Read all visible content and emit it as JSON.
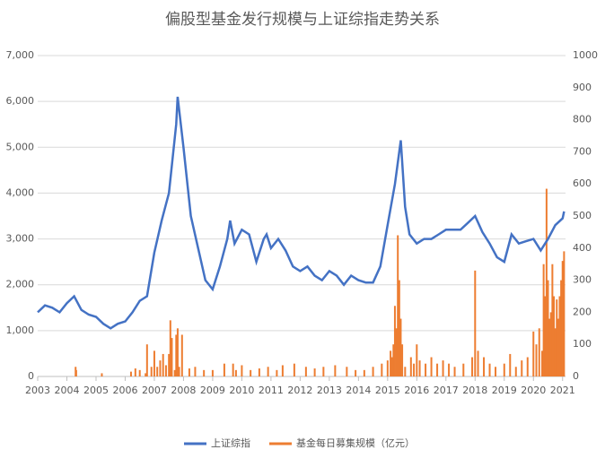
{
  "chart_data": {
    "type": "combo",
    "title": "偏股型基金发行规模与上证综指走势关系",
    "xlim": [
      2003,
      2021.1
    ],
    "xticks": [
      2003,
      2004,
      2005,
      2006,
      2007,
      2008,
      2009,
      2010,
      2011,
      2012,
      2013,
      2014,
      2015,
      2016,
      2017,
      2018,
      2019,
      2020,
      2021
    ],
    "ylim": [
      0,
      7000
    ],
    "yticks": [
      0,
      {
        "value": 1000,
        "label": "1,000"
      },
      {
        "value": 2000,
        "label": "2,000"
      },
      {
        "value": 3000,
        "label": "3,000"
      },
      {
        "value": 4000,
        "label": "4,000"
      },
      {
        "value": 5000,
        "label": "5,000"
      },
      {
        "value": 6000,
        "label": "6,000"
      },
      {
        "value": 7000,
        "label": "7,000"
      }
    ],
    "y2lim": [
      0,
      1000
    ],
    "y2ticks": [
      0,
      100,
      200,
      300,
      400,
      500,
      600,
      700,
      800,
      900,
      1000
    ],
    "grid": true,
    "legend": "bottom",
    "series": [
      {
        "name": "上证综指",
        "color": "#4472c4",
        "type": "line",
        "x": [
          2003,
          2003.25,
          2003.5,
          2003.75,
          2004,
          2004.25,
          2004.5,
          2004.75,
          2005,
          2005.25,
          2005.5,
          2005.75,
          2006,
          2006.25,
          2006.5,
          2006.75,
          2007,
          2007.25,
          2007.5,
          2007.75,
          2007.8,
          2008,
          2008.25,
          2008.5,
          2008.75,
          2009,
          2009.25,
          2009.5,
          2009.6,
          2009.75,
          2010,
          2010.25,
          2010.5,
          2010.75,
          2010.85,
          2011,
          2011.25,
          2011.5,
          2011.75,
          2012,
          2012.25,
          2012.5,
          2012.75,
          2013,
          2013.25,
          2013.5,
          2013.75,
          2014,
          2014.25,
          2014.5,
          2014.75,
          2015,
          2015.25,
          2015.45,
          2015.6,
          2015.75,
          2016,
          2016.25,
          2016.5,
          2016.75,
          2017,
          2017.25,
          2017.5,
          2017.75,
          2018,
          2018.25,
          2018.5,
          2018.75,
          2019,
          2019.25,
          2019.5,
          2019.75,
          2020,
          2020.25,
          2020.5,
          2020.75,
          2021,
          2021.05
        ],
        "values": [
          1400,
          1550,
          1500,
          1400,
          1600,
          1750,
          1450,
          1350,
          1300,
          1150,
          1050,
          1150,
          1200,
          1400,
          1650,
          1750,
          2700,
          3400,
          4000,
          5500,
          6100,
          5000,
          3500,
          2800,
          2100,
          1900,
          2400,
          3000,
          3400,
          2900,
          3200,
          3100,
          2500,
          3000,
          3100,
          2800,
          3000,
          2750,
          2400,
          2300,
          2400,
          2200,
          2100,
          2300,
          2200,
          2000,
          2200,
          2100,
          2050,
          2050,
          2400,
          3300,
          4200,
          5150,
          3700,
          3100,
          2900,
          3000,
          3000,
          3100,
          3200,
          3200,
          3200,
          3350,
          3500,
          3150,
          2900,
          2600,
          2500,
          3100,
          2900,
          2950,
          3000,
          2750,
          3000,
          3300,
          3450,
          3600
        ]
      },
      {
        "name": "基金每日募集规模（亿元）",
        "color": "#ed7d31",
        "type": "bar",
        "axis": "y2",
        "x": [
          2004.3,
          2004.32,
          2005.2,
          2006.2,
          2006.35,
          2006.5,
          2006.7,
          2006.75,
          2006.9,
          2007,
          2007.1,
          2007.2,
          2007.3,
          2007.4,
          2007.5,
          2007.55,
          2007.6,
          2007.7,
          2007.75,
          2007.8,
          2007.85,
          2007.95,
          2008.2,
          2008.4,
          2008.7,
          2009,
          2009.4,
          2009.7,
          2009.8,
          2010,
          2010.3,
          2010.6,
          2010.9,
          2011.2,
          2011.4,
          2011.8,
          2012.2,
          2012.5,
          2012.8,
          2013.2,
          2013.6,
          2013.9,
          2014.2,
          2014.5,
          2014.8,
          2015,
          2015.1,
          2015.15,
          2015.2,
          2015.25,
          2015.3,
          2015.35,
          2015.4,
          2015.45,
          2015.5,
          2015.6,
          2015.8,
          2015.9,
          2016,
          2016.1,
          2016.3,
          2016.5,
          2016.7,
          2016.9,
          2017.1,
          2017.3,
          2017.6,
          2017.9,
          2018,
          2018.1,
          2018.3,
          2018.5,
          2018.7,
          2019,
          2019.2,
          2019.4,
          2019.6,
          2019.8,
          2020,
          2020.1,
          2020.2,
          2020.3,
          2020.35,
          2020.4,
          2020.45,
          2020.5,
          2020.55,
          2020.6,
          2020.65,
          2020.7,
          2020.75,
          2020.8,
          2020.85,
          2020.9,
          2020.95,
          2021,
          2021.05
        ],
        "values": [
          30,
          20,
          10,
          15,
          25,
          20,
          10,
          100,
          30,
          80,
          30,
          50,
          70,
          35,
          70,
          175,
          120,
          20,
          130,
          150,
          30,
          130,
          25,
          30,
          20,
          20,
          40,
          40,
          20,
          35,
          20,
          25,
          30,
          20,
          35,
          40,
          30,
          25,
          30,
          35,
          30,
          20,
          20,
          30,
          40,
          50,
          80,
          60,
          100,
          220,
          150,
          440,
          300,
          180,
          100,
          30,
          60,
          40,
          100,
          50,
          40,
          60,
          40,
          50,
          40,
          30,
          40,
          60,
          330,
          80,
          60,
          40,
          30,
          40,
          70,
          30,
          50,
          60,
          140,
          100,
          150,
          80,
          350,
          250,
          585,
          300,
          180,
          200,
          350,
          250,
          150,
          240,
          180,
          250,
          300,
          360,
          390
        ]
      }
    ]
  }
}
